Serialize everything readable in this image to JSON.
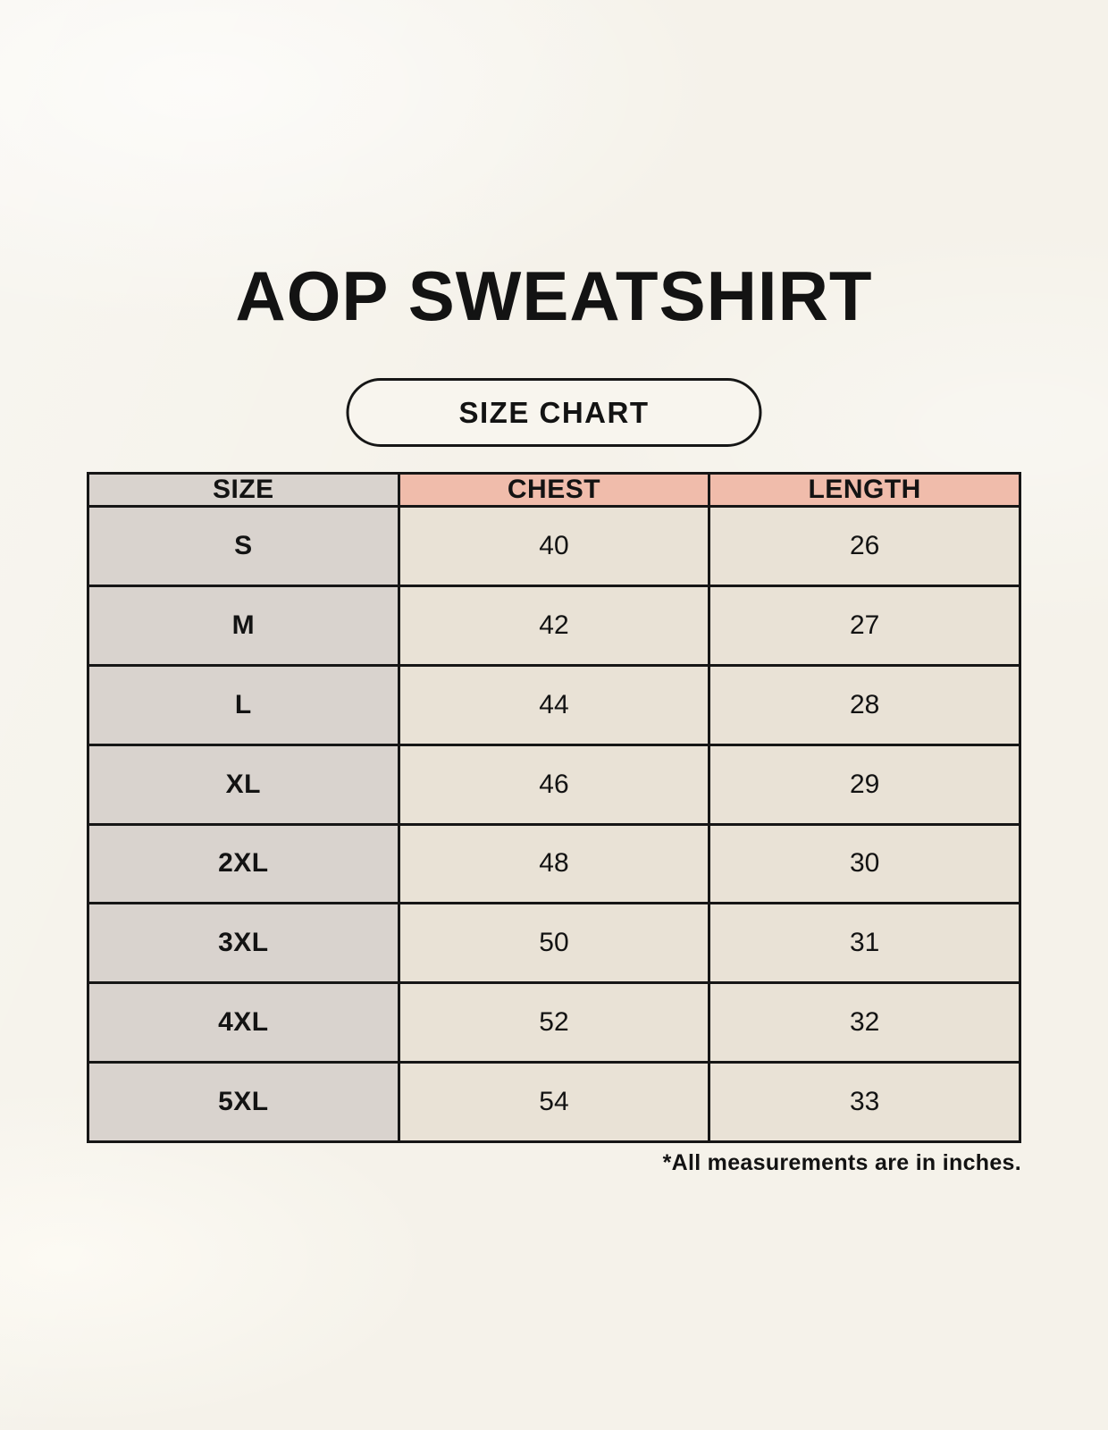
{
  "page": {
    "title": "AOP SWEATSHIRT",
    "badge_label": "SIZE CHART",
    "footnote": "*All measurements are in inches."
  },
  "table": {
    "columns": [
      "SIZE",
      "CHEST",
      "LENGTH"
    ],
    "rows": [
      {
        "size": "S",
        "chest": "40",
        "length": "26"
      },
      {
        "size": "M",
        "chest": "42",
        "length": "27"
      },
      {
        "size": "L",
        "chest": "44",
        "length": "28"
      },
      {
        "size": "XL",
        "chest": "46",
        "length": "29"
      },
      {
        "size": "2XL",
        "chest": "48",
        "length": "30"
      },
      {
        "size": "3XL",
        "chest": "50",
        "length": "31"
      },
      {
        "size": "4XL",
        "chest": "52",
        "length": "32"
      },
      {
        "size": "5XL",
        "chest": "54",
        "length": "33"
      }
    ]
  },
  "chart_data": {
    "type": "table",
    "title": "AOP Sweatshirt Size Chart",
    "columns": [
      "SIZE",
      "CHEST",
      "LENGTH"
    ],
    "rows": [
      [
        "S",
        40,
        26
      ],
      [
        "M",
        42,
        27
      ],
      [
        "L",
        44,
        28
      ],
      [
        "XL",
        46,
        29
      ],
      [
        "2XL",
        48,
        30
      ],
      [
        "3XL",
        50,
        31
      ],
      [
        "4XL",
        52,
        32
      ],
      [
        "5XL",
        54,
        33
      ]
    ],
    "units": "inches"
  },
  "colors": {
    "background": "#f5f2ea",
    "border": "#161616",
    "text": "#131313",
    "label_bg": "#d9d3ce",
    "measure_bg": "#f0bcab",
    "value_bg": "#e9e2d6",
    "badge_bg": "#f8f5ee"
  }
}
